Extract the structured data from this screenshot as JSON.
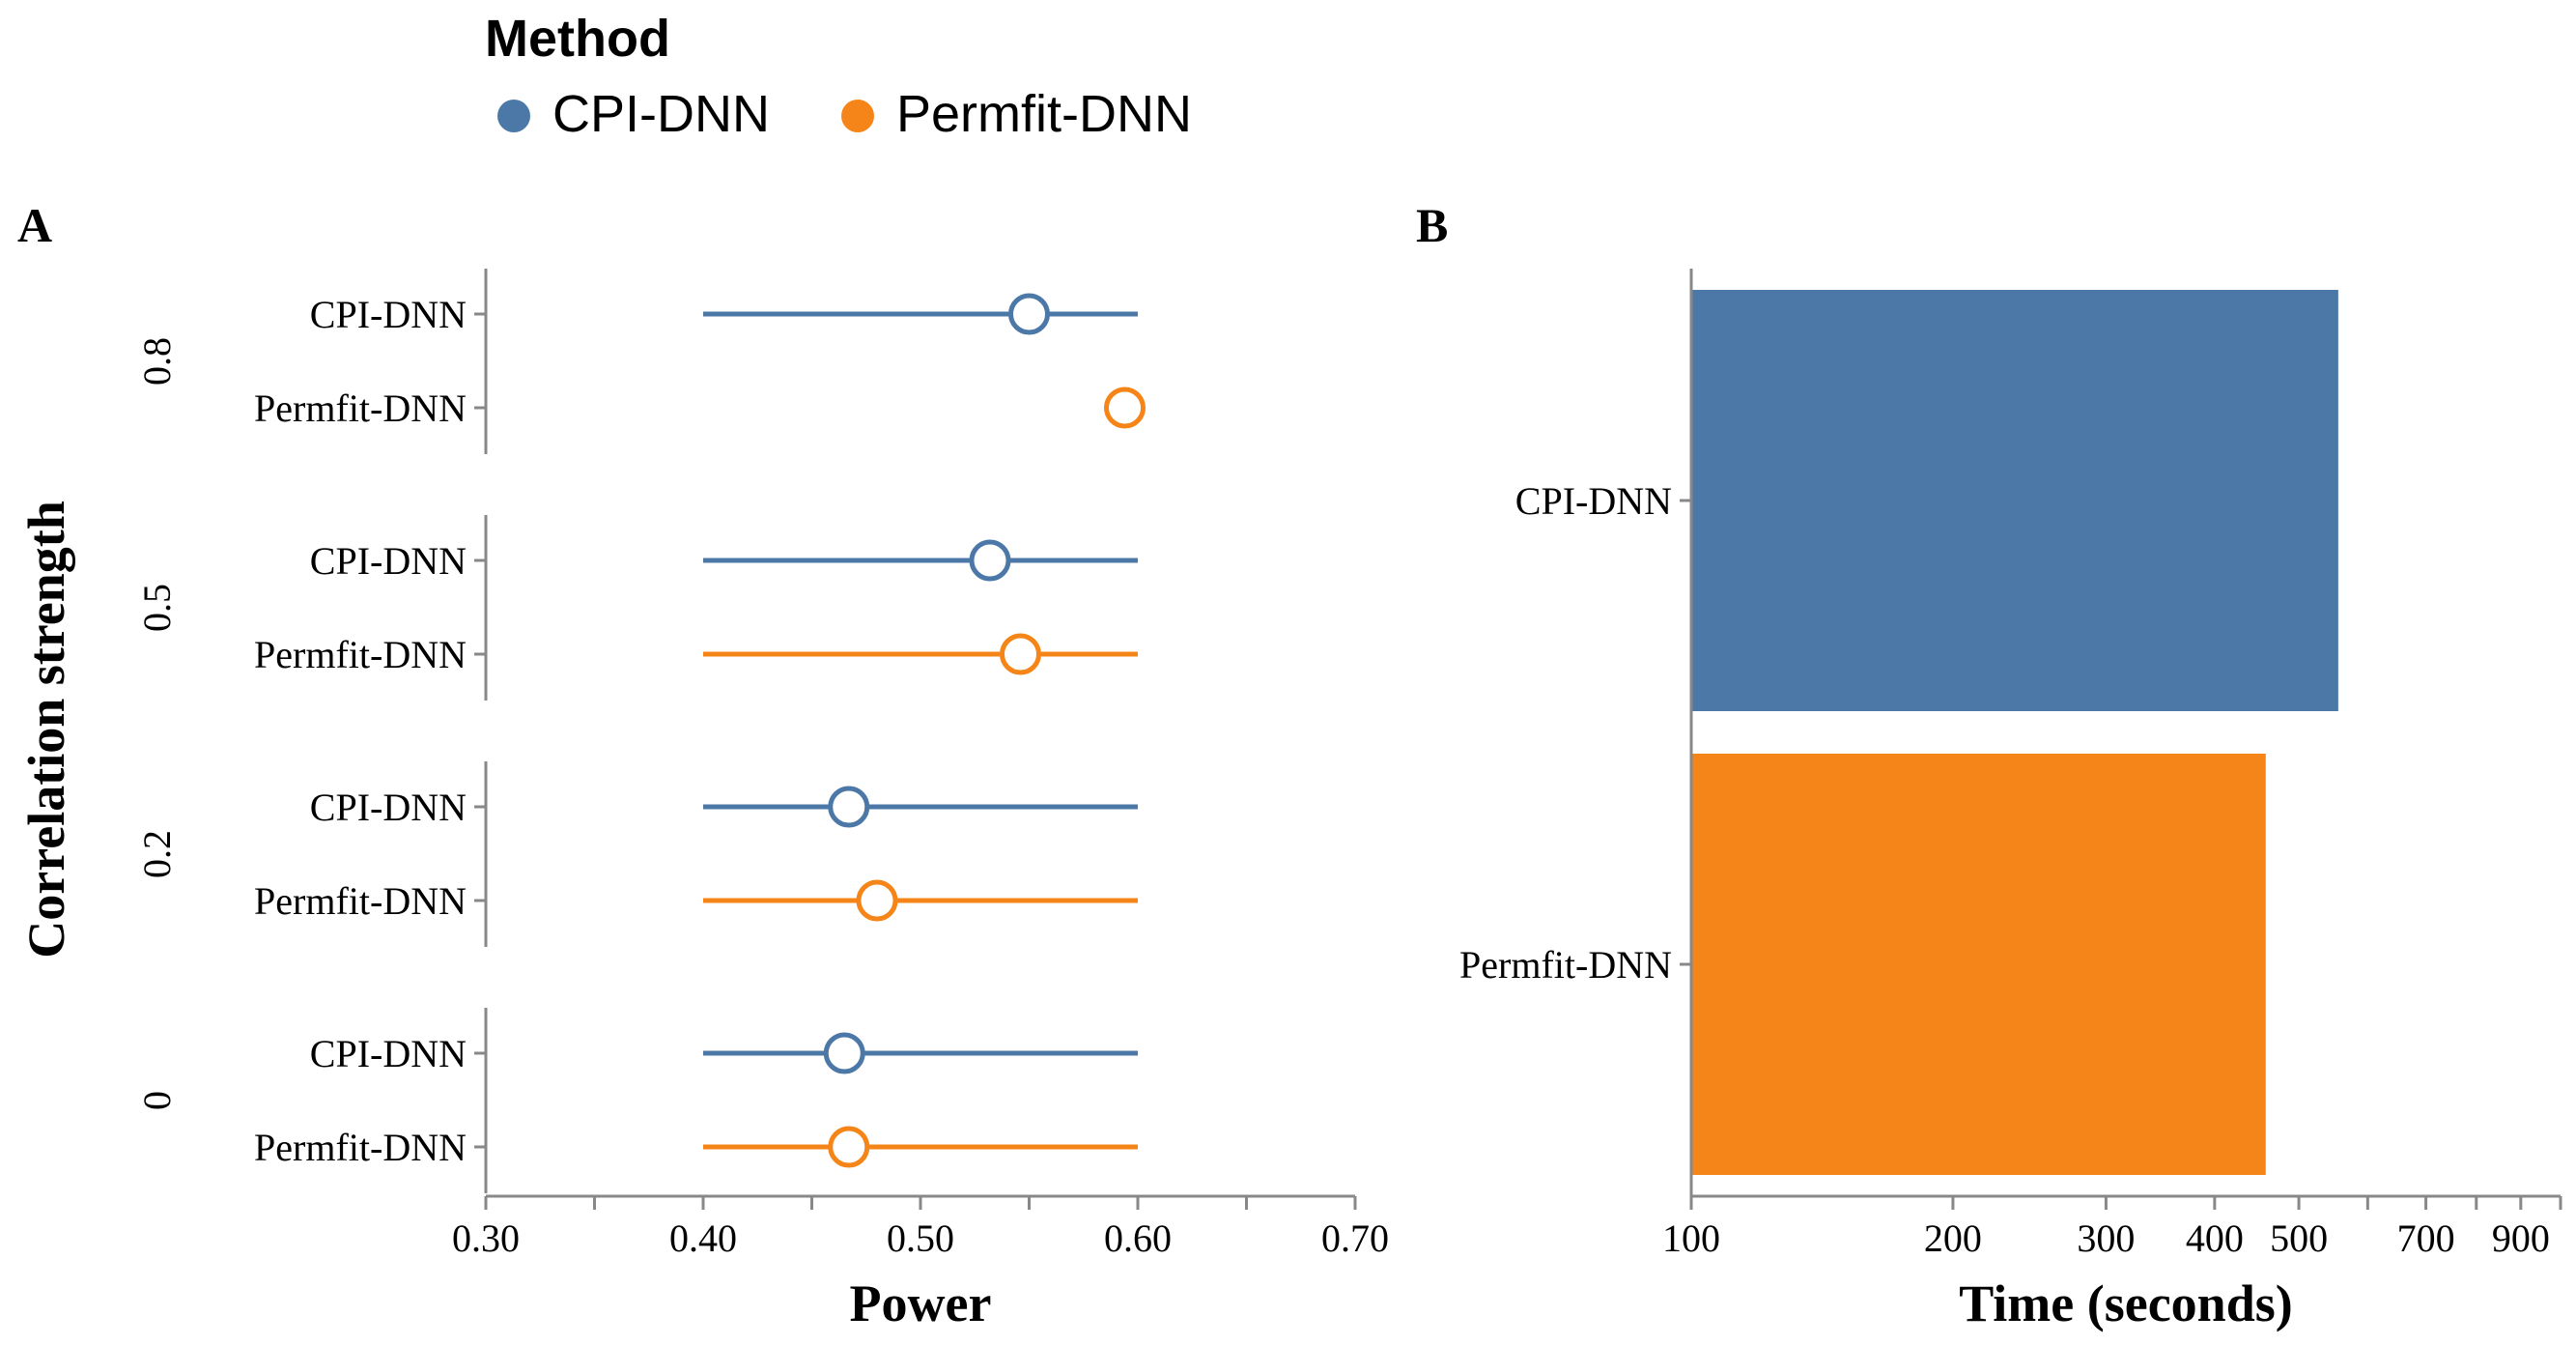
{
  "legend": {
    "title": "Method",
    "items": [
      {
        "label": "CPI-DNN",
        "color": "#4c78a8"
      },
      {
        "label": "Permfit-DNN",
        "color": "#f58518"
      }
    ]
  },
  "chart_data": [
    {
      "panel": "A",
      "type": "scatter",
      "xlabel": "Power",
      "ylabel": "Correlation strength",
      "xlim": [
        0.3,
        0.7
      ],
      "xticks": [
        "0.30",
        "0.40",
        "0.50",
        "0.60",
        "0.70"
      ],
      "groups": [
        {
          "label": "0.8",
          "rows": [
            {
              "method": "CPI-DNN",
              "value": 0.55,
              "low": 0.4,
              "high": 0.6
            },
            {
              "method": "Permfit-DNN",
              "value": 0.594,
              "low": 0.594,
              "high": 0.594
            }
          ]
        },
        {
          "label": "0.5",
          "rows": [
            {
              "method": "CPI-DNN",
              "value": 0.532,
              "low": 0.4,
              "high": 0.6
            },
            {
              "method": "Permfit-DNN",
              "value": 0.546,
              "low": 0.4,
              "high": 0.6
            }
          ]
        },
        {
          "label": "0.2",
          "rows": [
            {
              "method": "CPI-DNN",
              "value": 0.467,
              "low": 0.4,
              "high": 0.6
            },
            {
              "method": "Permfit-DNN",
              "value": 0.48,
              "low": 0.4,
              "high": 0.6
            }
          ]
        },
        {
          "label": "0",
          "rows": [
            {
              "method": "CPI-DNN",
              "value": 0.465,
              "low": 0.4,
              "high": 0.6
            },
            {
              "method": "Permfit-DNN",
              "value": 0.467,
              "low": 0.4,
              "high": 0.6
            }
          ]
        }
      ]
    },
    {
      "panel": "B",
      "type": "bar",
      "orientation": "horizontal",
      "scale": "log",
      "xlabel": "Time (seconds)",
      "xlim": [
        100,
        1000
      ],
      "xticks": [
        {
          "value": 100,
          "label": "100"
        },
        {
          "value": 200,
          "label": "200"
        },
        {
          "value": 300,
          "label": "300"
        },
        {
          "value": 400,
          "label": "400"
        },
        {
          "value": 500,
          "label": "500"
        },
        {
          "value": 600,
          "label": ""
        },
        {
          "value": 700,
          "label": "700"
        },
        {
          "value": 800,
          "label": ""
        },
        {
          "value": 900,
          "label": "900"
        },
        {
          "value": 1000,
          "label": ""
        }
      ],
      "categories": [
        "CPI-DNN",
        "Permfit-DNN"
      ],
      "values": [
        555,
        458
      ]
    }
  ]
}
